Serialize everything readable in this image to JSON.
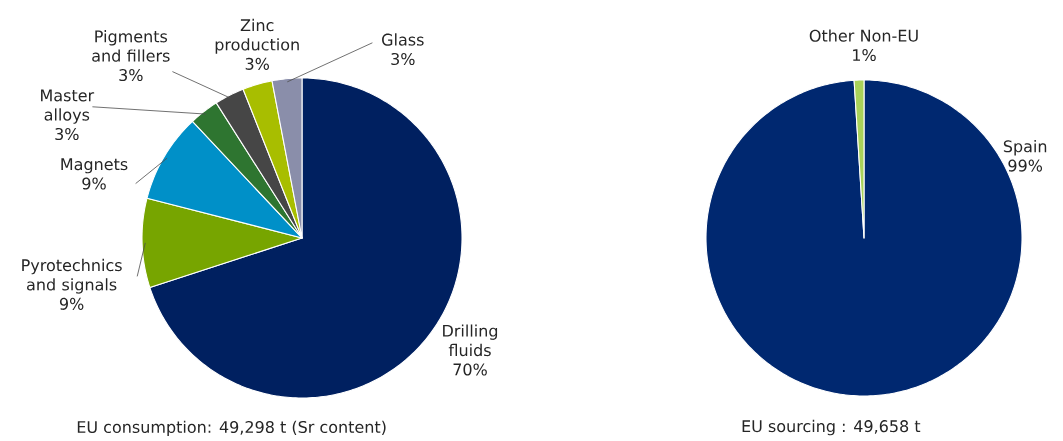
{
  "chart_data": [
    {
      "type": "pie",
      "categories": [
        "Drilling fluids",
        "Pyrotechnics and signals",
        "Magnets",
        "Master alloys",
        "Pigments and fillers",
        "Zinc production",
        "Glass"
      ],
      "values": [
        70,
        9,
        9,
        3,
        3,
        3,
        3
      ],
      "value_labels": [
        "70%",
        "9%",
        "9%",
        "3%",
        "3%",
        "3%",
        "3%"
      ],
      "colors": [
        "#002060",
        "#77a500",
        "#0090c8",
        "#2e7530",
        "#464646",
        "#a8be00",
        "#8a8eaa"
      ],
      "annotations": [
        "EU consumption: 49,298 t (Sr content)"
      ]
    },
    {
      "type": "pie",
      "categories": [
        "Spain",
        "Other Non-EU"
      ],
      "values": [
        99,
        1
      ],
      "value_labels": [
        "99%",
        "1%"
      ],
      "colors": [
        "#002870",
        "#a9d25a"
      ],
      "annotations": [
        "EU sourcing : 49,658 t"
      ]
    }
  ]
}
